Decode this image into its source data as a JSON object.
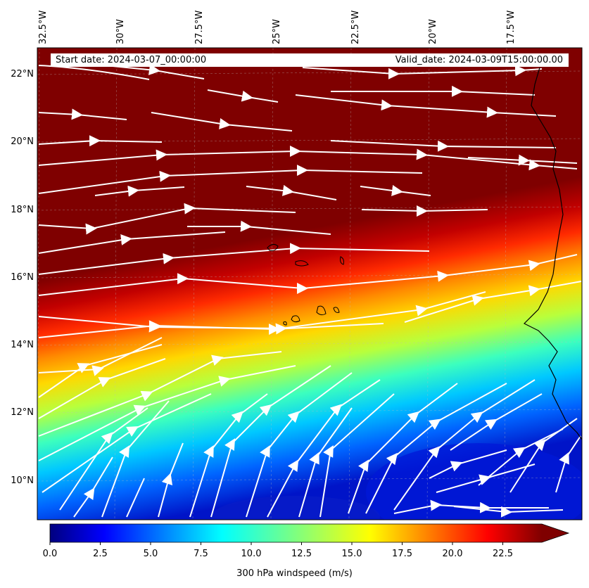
{
  "map": {
    "start_date": "Start date: 2024-03-07_00:00:00",
    "valid_date": "Valid_date: 2024-03-09T15:00:00.00",
    "lon_labels": [
      "32.5°W",
      "30°W",
      "27.5°W",
      "25°W",
      "22.5°W",
      "20°W",
      "17.5°W"
    ],
    "lat_labels": [
      "22°N",
      "20°N",
      "18°N",
      "16°N",
      "14°N",
      "12°N",
      "10°N"
    ],
    "colorbar": {
      "title": "300 hPa windspeed (m/s)",
      "ticks": [
        "0.0",
        "2.5",
        "5.0",
        "7.5",
        "10.0",
        "12.5",
        "15.0",
        "17.5",
        "20.0",
        "22.5"
      ],
      "min": 0,
      "max": 25,
      "extend": "max",
      "colormap": "jet"
    },
    "colors": {
      "ocean_max": "#7f0000",
      "streamline": "#ffffff",
      "coast": "#000000"
    }
  }
}
